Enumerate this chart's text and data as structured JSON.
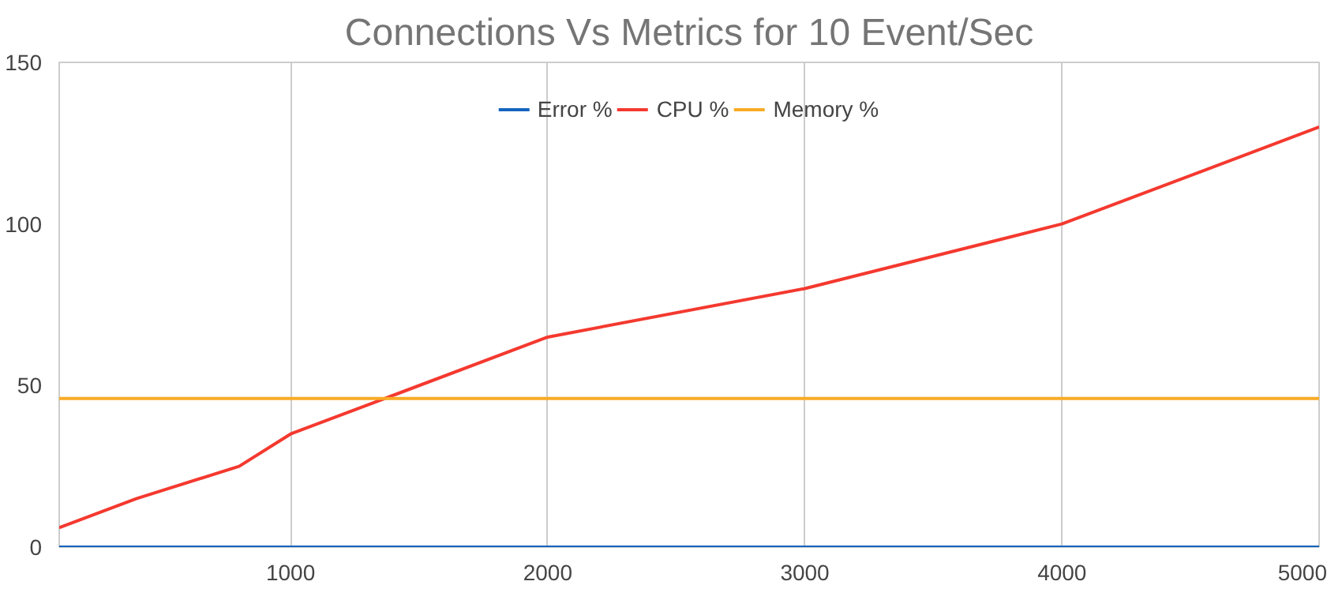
{
  "chart_data": {
    "type": "line",
    "title": "Connections Vs Metrics for 10 Event/Sec",
    "x": [
      100,
      400,
      800,
      1000,
      2000,
      3000,
      4000,
      5000
    ],
    "series": [
      {
        "name": "Error %",
        "color": "#1565c0",
        "values": [
          0,
          0,
          0,
          0,
          0,
          0,
          0,
          0
        ]
      },
      {
        "name": "CPU %",
        "color": "#f4392f",
        "values": [
          6,
          15,
          25,
          35,
          65,
          80,
          100,
          130
        ]
      },
      {
        "name": "Memory %",
        "color": "#f9ab24",
        "values": [
          46,
          46,
          46,
          46,
          46,
          46,
          46,
          46
        ]
      }
    ],
    "xlim": [
      100,
      5000
    ],
    "xticks": [
      1000,
      2000,
      3000,
      4000,
      5000
    ],
    "ylim": [
      0,
      150
    ],
    "yticks": [
      0,
      50,
      100,
      150
    ],
    "grid": "x",
    "legend": "top",
    "marker": "none",
    "line_style": "solid"
  }
}
